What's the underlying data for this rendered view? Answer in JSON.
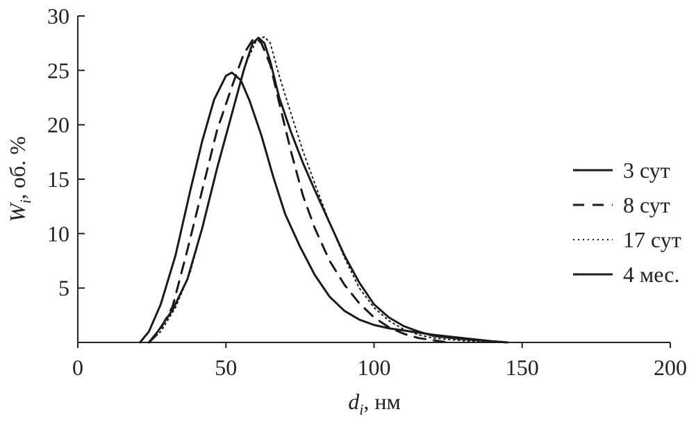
{
  "chart_data": {
    "type": "line",
    "xlabel": {
      "symbol": "d",
      "sub": "i",
      "rest": ", нм"
    },
    "ylabel": {
      "symbol": "W",
      "sub": "i",
      "rest": ", об. %"
    },
    "xlim": [
      0,
      200
    ],
    "ylim": [
      0,
      30
    ],
    "xticks": [
      0,
      50,
      100,
      150,
      200
    ],
    "yticks": [
      5,
      10,
      15,
      20,
      25,
      30
    ],
    "grid": false,
    "legend_position": "right",
    "series": [
      {
        "name": "3 сут",
        "style": "solid",
        "points": [
          [
            24,
            0
          ],
          [
            27,
            1
          ],
          [
            32,
            3
          ],
          [
            37,
            5.8
          ],
          [
            42,
            10.5
          ],
          [
            47,
            16
          ],
          [
            52,
            21
          ],
          [
            56,
            25
          ],
          [
            59,
            27.5
          ],
          [
            61,
            28
          ],
          [
            63,
            27.5
          ],
          [
            65,
            25.8
          ],
          [
            68,
            22.5
          ],
          [
            72,
            19.3
          ],
          [
            76,
            16.5
          ],
          [
            80,
            14
          ],
          [
            85,
            11
          ],
          [
            90,
            8
          ],
          [
            95,
            5.5
          ],
          [
            100,
            3.5
          ],
          [
            105,
            2.3
          ],
          [
            110,
            1.5
          ],
          [
            115,
            1
          ],
          [
            120,
            0.6
          ],
          [
            130,
            0.3
          ],
          [
            140,
            0.1
          ],
          [
            145,
            0
          ]
        ]
      },
      {
        "name": "8 сут",
        "style": "dashed",
        "points": [
          [
            24,
            0
          ],
          [
            27,
            0.8
          ],
          [
            32,
            3.3
          ],
          [
            37,
            8.5
          ],
          [
            42,
            14
          ],
          [
            47,
            19.5
          ],
          [
            52,
            23.5
          ],
          [
            56,
            26.5
          ],
          [
            59,
            27.8
          ],
          [
            60,
            28
          ],
          [
            62,
            27.5
          ],
          [
            65,
            25.5
          ],
          [
            68,
            22
          ],
          [
            72,
            17.5
          ],
          [
            76,
            13.5
          ],
          [
            80,
            10.5
          ],
          [
            85,
            7.5
          ],
          [
            90,
            5.3
          ],
          [
            95,
            3.6
          ],
          [
            100,
            2.3
          ],
          [
            105,
            1.4
          ],
          [
            110,
            0.8
          ],
          [
            115,
            0.4
          ],
          [
            120,
            0.2
          ],
          [
            125,
            0
          ]
        ]
      },
      {
        "name": "17 сут",
        "style": "dotted",
        "points": [
          [
            24,
            0
          ],
          [
            28,
            1
          ],
          [
            33,
            3.2
          ],
          [
            38,
            6.5
          ],
          [
            43,
            11.5
          ],
          [
            48,
            17
          ],
          [
            53,
            22
          ],
          [
            57,
            25.8
          ],
          [
            60,
            27.6
          ],
          [
            63,
            28.1
          ],
          [
            65,
            27.5
          ],
          [
            68,
            24.5
          ],
          [
            72,
            21
          ],
          [
            76,
            17.6
          ],
          [
            80,
            14.6
          ],
          [
            85,
            11
          ],
          [
            90,
            7.8
          ],
          [
            95,
            5
          ],
          [
            100,
            3.2
          ],
          [
            105,
            2
          ],
          [
            110,
            1.2
          ],
          [
            115,
            0.7
          ],
          [
            120,
            0.4
          ],
          [
            130,
            0.15
          ],
          [
            140,
            0
          ]
        ]
      },
      {
        "name": "4 мес.",
        "style": "solid",
        "points": [
          [
            21,
            0
          ],
          [
            24,
            1
          ],
          [
            28,
            3.5
          ],
          [
            33,
            8
          ],
          [
            38,
            14
          ],
          [
            42,
            18.5
          ],
          [
            46,
            22.3
          ],
          [
            50,
            24.5
          ],
          [
            52,
            24.8
          ],
          [
            55,
            24.1
          ],
          [
            58,
            22.2
          ],
          [
            62,
            19
          ],
          [
            66,
            15.2
          ],
          [
            70,
            11.8
          ],
          [
            75,
            8.8
          ],
          [
            80,
            6.2
          ],
          [
            85,
            4.2
          ],
          [
            90,
            2.9
          ],
          [
            95,
            2.1
          ],
          [
            100,
            1.6
          ],
          [
            105,
            1.3
          ],
          [
            110,
            1.1
          ],
          [
            115,
            0.9
          ],
          [
            120,
            0.7
          ],
          [
            130,
            0.4
          ],
          [
            140,
            0.1
          ],
          [
            145,
            0
          ]
        ]
      }
    ]
  }
}
